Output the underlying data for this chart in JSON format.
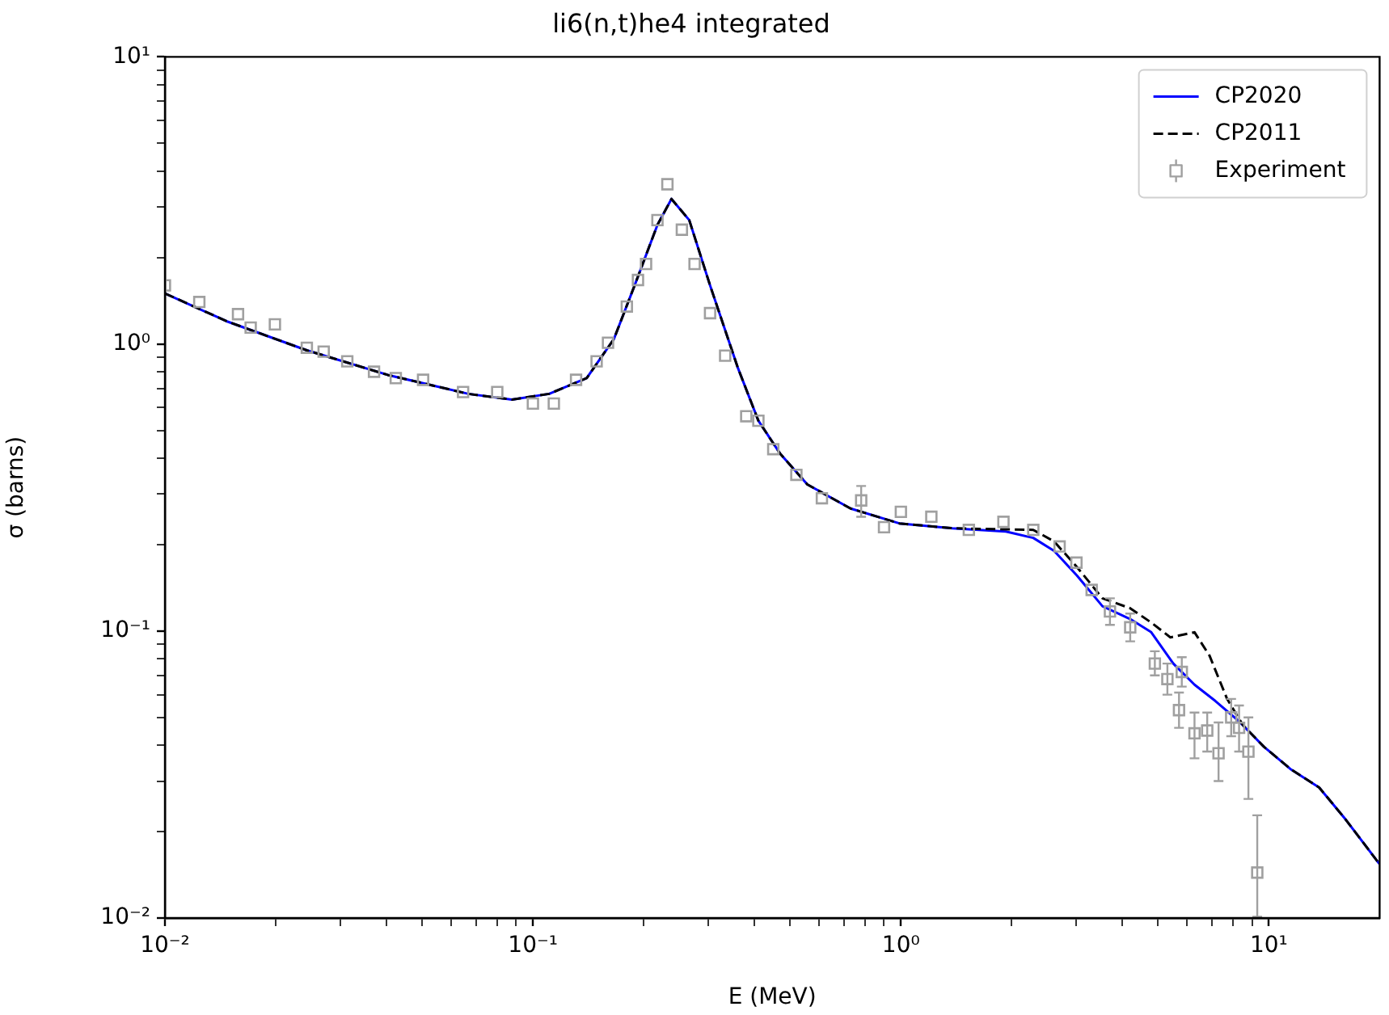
{
  "chart_data": {
    "type": "line",
    "title": "li6(n,t)he4 integrated",
    "xlabel": "E (MeV)",
    "ylabel": "σ (barns)",
    "log": "xy",
    "grid": false,
    "legend": "top right",
    "xlim": [
      0.01,
      20
    ],
    "ylim": [
      0.01,
      10
    ],
    "xticks": [
      {
        "value": 0.01,
        "label": "10⁻²"
      },
      {
        "value": 0.02,
        "label": null
      },
      {
        "value": 0.03,
        "label": null
      },
      {
        "value": 0.04,
        "label": null
      },
      {
        "value": 0.05,
        "label": null
      },
      {
        "value": 0.06,
        "label": null
      },
      {
        "value": 0.07,
        "label": null
      },
      {
        "value": 0.08,
        "label": null
      },
      {
        "value": 0.09,
        "label": null
      },
      {
        "value": 0.1,
        "label": "10⁻¹"
      },
      {
        "value": 0.2,
        "label": null
      },
      {
        "value": 0.3,
        "label": null
      },
      {
        "value": 0.4,
        "label": null
      },
      {
        "value": 0.5,
        "label": null
      },
      {
        "value": 0.6,
        "label": null
      },
      {
        "value": 0.7,
        "label": null
      },
      {
        "value": 0.8,
        "label": null
      },
      {
        "value": 0.9,
        "label": null
      },
      {
        "value": 1,
        "label": "10⁰"
      },
      {
        "value": 2,
        "label": null
      },
      {
        "value": 3,
        "label": null
      },
      {
        "value": 4,
        "label": null
      },
      {
        "value": 5,
        "label": null
      },
      {
        "value": 6,
        "label": null
      },
      {
        "value": 7,
        "label": null
      },
      {
        "value": 8,
        "label": null
      },
      {
        "value": 9,
        "label": null
      },
      {
        "value": 10,
        "label": "10¹"
      }
    ],
    "yticks": [
      {
        "value": 0.01,
        "label": "10⁻²"
      },
      {
        "value": 0.02,
        "label": null
      },
      {
        "value": 0.03,
        "label": null
      },
      {
        "value": 0.04,
        "label": null
      },
      {
        "value": 0.05,
        "label": null
      },
      {
        "value": 0.06,
        "label": null
      },
      {
        "value": 0.07,
        "label": null
      },
      {
        "value": 0.08,
        "label": null
      },
      {
        "value": 0.09,
        "label": null
      },
      {
        "value": 0.1,
        "label": "10⁻¹"
      },
      {
        "value": 0.2,
        "label": null
      },
      {
        "value": 0.3,
        "label": null
      },
      {
        "value": 0.4,
        "label": null
      },
      {
        "value": 0.5,
        "label": null
      },
      {
        "value": 0.6,
        "label": null
      },
      {
        "value": 0.7,
        "label": null
      },
      {
        "value": 0.8,
        "label": null
      },
      {
        "value": 0.9,
        "label": null
      },
      {
        "value": 1,
        "label": "10⁰"
      },
      {
        "value": 2,
        "label": null
      },
      {
        "value": 3,
        "label": null
      },
      {
        "value": 4,
        "label": null
      },
      {
        "value": 5,
        "label": null
      },
      {
        "value": 6,
        "label": null
      },
      {
        "value": 7,
        "label": null
      },
      {
        "value": 8,
        "label": null
      },
      {
        "value": 9,
        "label": null
      },
      {
        "value": 10,
        "label": "10¹"
      }
    ],
    "series": [
      {
        "name": "CP2020",
        "type": "line",
        "color": "#0000ff",
        "line_style": "solid",
        "marker": "none",
        "x": [
          0.01,
          0.0147,
          0.0243,
          0.0403,
          0.0668,
          0.0877,
          0.1107,
          0.14,
          0.166,
          0.189,
          0.218,
          0.238,
          0.266,
          0.303,
          0.36,
          0.41,
          0.469,
          0.557,
          0.73,
          0.99,
          1.38,
          1.93,
          2.29,
          2.61,
          3.01,
          3.53,
          4.2,
          4.79,
          5.5,
          6.28,
          7.16,
          8.26,
          9.7,
          11.5,
          13.7,
          16.1,
          20
        ],
        "values": [
          1.5,
          1.2,
          0.95,
          0.78,
          0.67,
          0.64,
          0.67,
          0.76,
          1.04,
          1.6,
          2.6,
          3.2,
          2.7,
          1.6,
          0.83,
          0.54,
          0.416,
          0.324,
          0.267,
          0.237,
          0.228,
          0.222,
          0.211,
          0.19,
          0.156,
          0.122,
          0.11,
          0.099,
          0.077,
          0.065,
          0.057,
          0.0487,
          0.0395,
          0.0329,
          0.0285,
          0.0222,
          0.0154
        ]
      },
      {
        "name": "CP2011",
        "type": "line",
        "color": "#000000",
        "line_style": "dashed",
        "marker": "none",
        "x": [
          0.01,
          0.0147,
          0.0243,
          0.0403,
          0.0668,
          0.0877,
          0.1107,
          0.14,
          0.166,
          0.189,
          0.218,
          0.238,
          0.266,
          0.303,
          0.36,
          0.41,
          0.469,
          0.557,
          0.73,
          0.99,
          1.38,
          1.93,
          2.29,
          2.61,
          3.01,
          3.53,
          4.2,
          4.79,
          5.4,
          6.28,
          6.9,
          7.7,
          8.5,
          9.7,
          11.5,
          13.7,
          16.1,
          20
        ],
        "values": [
          1.5,
          1.2,
          0.95,
          0.78,
          0.67,
          0.64,
          0.67,
          0.76,
          1.04,
          1.6,
          2.6,
          3.2,
          2.7,
          1.6,
          0.83,
          0.54,
          0.416,
          0.324,
          0.267,
          0.237,
          0.228,
          0.226,
          0.225,
          0.205,
          0.167,
          0.13,
          0.12,
          0.107,
          0.095,
          0.099,
          0.082,
          0.058,
          0.047,
          0.0395,
          0.0329,
          0.0285,
          0.0222,
          0.0154
        ]
      },
      {
        "name": "Experiment",
        "type": "scatter",
        "color": "#a0a0a0",
        "marker": "square",
        "x": [
          0.01,
          0.0124,
          0.0158,
          0.0171,
          0.0199,
          0.0243,
          0.027,
          0.0313,
          0.037,
          0.0424,
          0.0503,
          0.0646,
          0.08,
          0.1,
          0.114,
          0.131,
          0.149,
          0.16,
          0.18,
          0.193,
          0.203,
          0.218,
          0.232,
          0.254,
          0.275,
          0.303,
          0.333,
          0.38,
          0.41,
          0.45,
          0.52,
          0.61,
          0.78,
          0.9,
          1.0,
          1.21,
          1.53,
          1.9,
          2.29,
          2.7,
          3.0,
          3.3,
          3.7,
          4.2,
          4.9,
          5.3,
          5.7,
          5.8,
          6.28,
          6.8,
          7.3,
          7.9,
          8.3,
          8.8,
          9.3
        ],
        "values": [
          1.6,
          1.4,
          1.27,
          1.14,
          1.17,
          0.97,
          0.94,
          0.87,
          0.8,
          0.76,
          0.75,
          0.68,
          0.68,
          0.62,
          0.62,
          0.75,
          0.87,
          1.01,
          1.35,
          1.67,
          1.9,
          2.7,
          3.6,
          2.5,
          1.9,
          1.28,
          0.91,
          0.56,
          0.54,
          0.43,
          0.35,
          0.29,
          0.285,
          0.23,
          0.26,
          0.25,
          0.225,
          0.24,
          0.225,
          0.197,
          0.173,
          0.139,
          0.117,
          0.103,
          0.077,
          0.068,
          0.053,
          0.072,
          0.044,
          0.045,
          0.0375,
          0.05,
          0.046,
          0.038,
          0.0144
        ],
        "errors": [
          null,
          null,
          null,
          null,
          null,
          null,
          null,
          null,
          null,
          null,
          null,
          null,
          null,
          null,
          null,
          null,
          null,
          null,
          null,
          null,
          null,
          null,
          null,
          null,
          null,
          null,
          null,
          null,
          null,
          null,
          null,
          null,
          [
            0.25,
            0.32
          ],
          null,
          null,
          null,
          null,
          null,
          null,
          null,
          null,
          null,
          [
            0.105,
            0.13
          ],
          [
            0.092,
            0.115
          ],
          [
            0.07,
            0.085
          ],
          [
            0.06,
            0.077
          ],
          [
            0.046,
            0.061
          ],
          [
            0.064,
            0.081
          ],
          [
            0.036,
            0.052
          ],
          [
            0.038,
            0.052
          ],
          [
            0.03,
            0.048
          ],
          [
            0.043,
            0.058
          ],
          [
            0.038,
            0.055
          ],
          [
            0.026,
            0.05
          ],
          [
            0.0101,
            0.0228
          ]
        ]
      }
    ]
  }
}
